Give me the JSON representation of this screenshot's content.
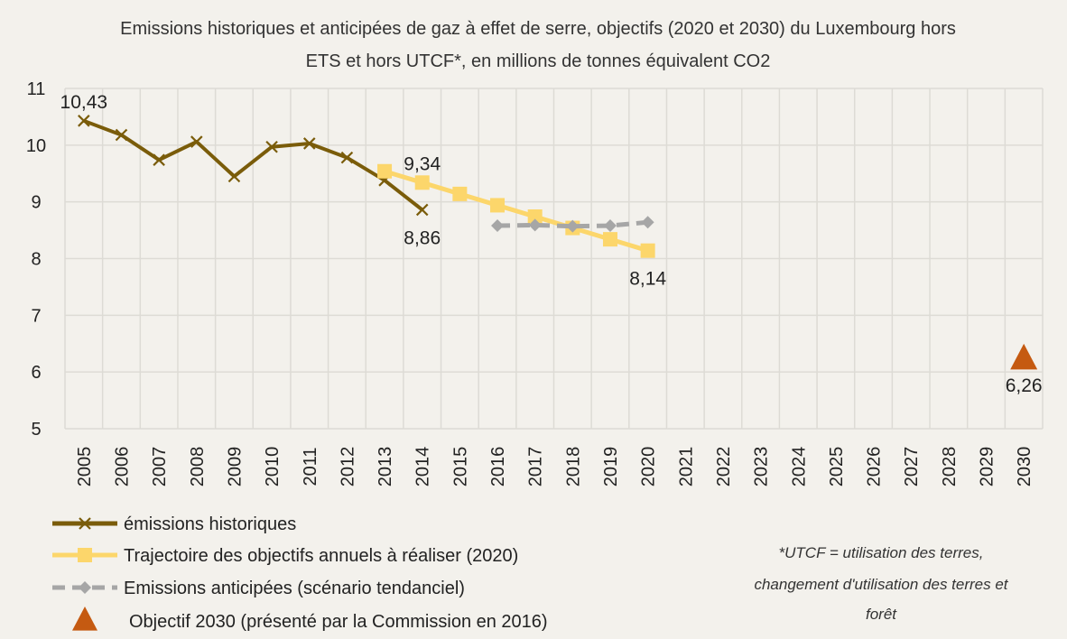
{
  "chart_data": {
    "type": "line",
    "title_line1": "Emissions historiques et anticipées de gaz à effet de serre, objectifs (2020 et 2030) du Luxembourg hors",
    "title_line2": "ETS et hors UTCF*, en millions de tonnes équivalent CO2",
    "categories": [
      "2005",
      "2006",
      "2007",
      "2008",
      "2009",
      "2010",
      "2011",
      "2012",
      "2013",
      "2014",
      "2015",
      "2016",
      "2017",
      "2018",
      "2019",
      "2020",
      "2021",
      "2022",
      "2023",
      "2024",
      "2025",
      "2026",
      "2027",
      "2028",
      "2029",
      "2030"
    ],
    "ylim": [
      5,
      11
    ],
    "yticks": [
      "5",
      "6",
      "7",
      "8",
      "9",
      "10",
      "11"
    ],
    "grid": true,
    "series": [
      {
        "name": "émissions historiques",
        "color": "#7a5c0a",
        "marker": "x",
        "style": "solid",
        "points": [
          [
            2005,
            10.43
          ],
          [
            2006,
            10.18
          ],
          [
            2007,
            9.74
          ],
          [
            2008,
            10.06
          ],
          [
            2009,
            9.45
          ],
          [
            2010,
            9.97
          ],
          [
            2011,
            10.03
          ],
          [
            2012,
            9.78
          ],
          [
            2013,
            9.38
          ],
          [
            2014,
            8.86
          ]
        ]
      },
      {
        "name": "Trajectoire des objectifs annuels à réaliser (2020)",
        "color": "#fcd66b",
        "marker": "square",
        "style": "solid",
        "points": [
          [
            2013,
            9.54
          ],
          [
            2014,
            9.34
          ],
          [
            2015,
            9.14
          ],
          [
            2016,
            8.94
          ],
          [
            2017,
            8.74
          ],
          [
            2018,
            8.54
          ],
          [
            2019,
            8.34
          ],
          [
            2020,
            8.14
          ]
        ]
      },
      {
        "name": "Emissions anticipées (scénario tendanciel)",
        "color": "#a6a6a6",
        "marker": "diamond",
        "style": "dashed",
        "points": [
          [
            2016,
            8.58
          ],
          [
            2017,
            8.59
          ],
          [
            2018,
            8.57
          ],
          [
            2019,
            8.58
          ],
          [
            2020,
            8.64
          ]
        ]
      },
      {
        "name": "Objectif 2030 (présenté par la Commission en 2016)",
        "color": "#c55a11",
        "marker": "triangle",
        "style": "none",
        "points": [
          [
            2030,
            6.26
          ]
        ]
      }
    ],
    "annotations": [
      {
        "text": "10,43",
        "x": 2005,
        "y": 10.43,
        "pos": "above"
      },
      {
        "text": "9,34",
        "x": 2014,
        "y": 9.34,
        "pos": "above"
      },
      {
        "text": "8,86",
        "x": 2014,
        "y": 8.86,
        "pos": "below"
      },
      {
        "text": "8,14",
        "x": 2020,
        "y": 8.14,
        "pos": "below"
      },
      {
        "text": "6,26",
        "x": 2030,
        "y": 6.26,
        "pos": "below"
      }
    ],
    "legend_position": "bottom-left",
    "note_lines": [
      "*UTCF = utilisation des terres,",
      "changement d'utilisation des terres et",
      "forêt"
    ]
  }
}
